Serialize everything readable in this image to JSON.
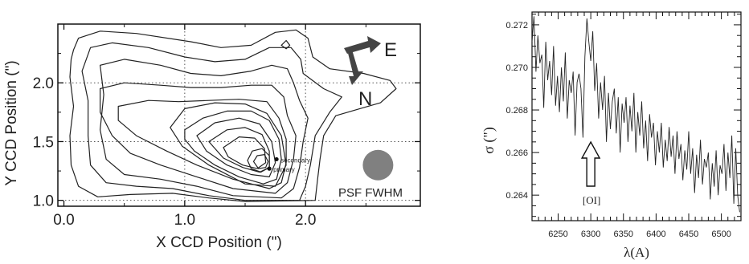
{
  "chart_data": [
    {
      "type": "contour",
      "xlabel": "X CCD Position (\")",
      "ylabel": "Y CCD Position (\")",
      "xlim": [
        -0.05,
        2.95
      ],
      "ylim": [
        0.95,
        2.5
      ],
      "xticks": [
        0.0,
        1.0,
        2.0
      ],
      "xtick_labels": [
        "0.0",
        "1.0",
        "2.0"
      ],
      "yticks": [
        1.0,
        1.5,
        2.0
      ],
      "ytick_labels": [
        "1.0",
        "1.5",
        "2.0"
      ],
      "grid": "dotted at ticks",
      "compass": {
        "east_label": "E",
        "north_label": "N"
      },
      "points": [
        {
          "label": "secondary",
          "x": 1.76,
          "y": 1.35
        },
        {
          "label": "primary",
          "x": 1.7,
          "y": 1.27
        }
      ],
      "psf_label": "PSF FWHM",
      "psf_center": {
        "x": 2.6,
        "y": 1.3
      },
      "contours": [
        [
          [
            0.08,
            2.28
          ],
          [
            0.12,
            2.38
          ],
          [
            0.3,
            2.44
          ],
          [
            0.6,
            2.42
          ],
          [
            1.05,
            2.35
          ],
          [
            1.3,
            2.3
          ],
          [
            1.55,
            2.32
          ],
          [
            1.75,
            2.43
          ],
          [
            1.92,
            2.45
          ],
          [
            2.02,
            2.38
          ],
          [
            2.06,
            2.22
          ],
          [
            2.2,
            2.12
          ],
          [
            2.48,
            2.08
          ],
          [
            2.7,
            2.02
          ],
          [
            2.75,
            1.95
          ],
          [
            2.62,
            1.83
          ],
          [
            2.45,
            1.78
          ],
          [
            2.25,
            1.72
          ],
          [
            2.15,
            1.55
          ],
          [
            2.12,
            1.35
          ],
          [
            2.1,
            1.18
          ],
          [
            2.08,
            1.0
          ],
          [
            1.5,
            0.99
          ],
          [
            1.2,
            1.02
          ],
          [
            0.9,
            1.06
          ],
          [
            0.55,
            1.05
          ],
          [
            0.28,
            1.03
          ],
          [
            0.12,
            1.12
          ],
          [
            0.06,
            1.3
          ],
          [
            0.05,
            1.55
          ],
          [
            0.08,
            1.8
          ],
          [
            0.05,
            2.05
          ],
          [
            0.06,
            2.2
          ],
          [
            0.08,
            2.28
          ]
        ],
        [
          [
            0.22,
            2.3
          ],
          [
            0.4,
            2.34
          ],
          [
            0.7,
            2.3
          ],
          [
            1.0,
            2.22
          ],
          [
            1.25,
            2.18
          ],
          [
            1.5,
            2.2
          ],
          [
            1.7,
            2.3
          ],
          [
            1.88,
            2.3
          ],
          [
            1.96,
            2.2
          ],
          [
            1.98,
            2.08
          ],
          [
            2.15,
            1.95
          ],
          [
            2.3,
            1.88
          ],
          [
            2.2,
            1.75
          ],
          [
            2.08,
            1.55
          ],
          [
            2.04,
            1.3
          ],
          [
            2.0,
            1.12
          ],
          [
            1.95,
            1.0
          ],
          [
            1.5,
            1.0
          ],
          [
            1.2,
            1.04
          ],
          [
            0.9,
            1.1
          ],
          [
            0.6,
            1.12
          ],
          [
            0.35,
            1.15
          ],
          [
            0.22,
            1.3
          ],
          [
            0.2,
            1.55
          ],
          [
            0.2,
            1.85
          ],
          [
            0.15,
            2.1
          ],
          [
            0.22,
            2.3
          ]
        ],
        [
          [
            0.3,
            2.15
          ],
          [
            0.5,
            2.2
          ],
          [
            0.8,
            2.15
          ],
          [
            1.05,
            2.08
          ],
          [
            1.3,
            2.06
          ],
          [
            1.55,
            2.1
          ],
          [
            1.72,
            2.15
          ],
          [
            1.85,
            2.12
          ],
          [
            1.9,
            2.0
          ],
          [
            1.95,
            1.85
          ],
          [
            2.02,
            1.7
          ],
          [
            1.98,
            1.5
          ],
          [
            1.95,
            1.28
          ],
          [
            1.9,
            1.1
          ],
          [
            1.8,
            1.02
          ],
          [
            1.4,
            1.04
          ],
          [
            1.1,
            1.12
          ],
          [
            0.8,
            1.18
          ],
          [
            0.5,
            1.22
          ],
          [
            0.35,
            1.35
          ],
          [
            0.3,
            1.6
          ],
          [
            0.33,
            1.9
          ],
          [
            0.3,
            2.15
          ]
        ],
        [
          [
            0.3,
            1.95
          ],
          [
            0.5,
            2.0
          ],
          [
            0.8,
            1.98
          ],
          [
            1.05,
            1.96
          ],
          [
            1.3,
            1.96
          ],
          [
            1.55,
            1.98
          ],
          [
            1.72,
            1.98
          ],
          [
            1.82,
            1.88
          ],
          [
            1.85,
            1.72
          ],
          [
            1.92,
            1.55
          ],
          [
            1.9,
            1.35
          ],
          [
            1.85,
            1.15
          ],
          [
            1.75,
            1.06
          ],
          [
            1.4,
            1.1
          ],
          [
            1.1,
            1.2
          ],
          [
            0.8,
            1.3
          ],
          [
            0.55,
            1.4
          ],
          [
            0.4,
            1.55
          ],
          [
            0.3,
            1.75
          ],
          [
            0.3,
            1.95
          ]
        ],
        [
          [
            0.45,
            1.8
          ],
          [
            0.7,
            1.85
          ],
          [
            0.95,
            1.84
          ],
          [
            1.2,
            1.85
          ],
          [
            1.45,
            1.86
          ],
          [
            1.68,
            1.84
          ],
          [
            1.78,
            1.7
          ],
          [
            1.84,
            1.52
          ],
          [
            1.84,
            1.32
          ],
          [
            1.8,
            1.15
          ],
          [
            1.7,
            1.1
          ],
          [
            1.4,
            1.18
          ],
          [
            1.1,
            1.3
          ],
          [
            0.85,
            1.42
          ],
          [
            0.6,
            1.55
          ],
          [
            0.45,
            1.68
          ],
          [
            0.45,
            1.8
          ]
        ],
        [
          [
            1.0,
            1.6
          ],
          [
            1.15,
            1.7
          ],
          [
            1.35,
            1.76
          ],
          [
            1.55,
            1.76
          ],
          [
            1.7,
            1.68
          ],
          [
            1.78,
            1.52
          ],
          [
            1.8,
            1.35
          ],
          [
            1.76,
            1.18
          ],
          [
            1.65,
            1.14
          ],
          [
            1.45,
            1.2
          ],
          [
            1.25,
            1.3
          ],
          [
            1.08,
            1.42
          ],
          [
            1.0,
            1.52
          ],
          [
            1.0,
            1.6
          ]
        ],
        [
          [
            0.88,
            1.62
          ],
          [
            1.0,
            1.78
          ],
          [
            1.25,
            1.83
          ],
          [
            1.5,
            1.82
          ],
          [
            1.68,
            1.74
          ],
          [
            1.8,
            1.55
          ],
          [
            1.84,
            1.3
          ],
          [
            1.75,
            1.12
          ],
          [
            1.5,
            1.14
          ],
          [
            1.2,
            1.3
          ],
          [
            0.98,
            1.46
          ],
          [
            0.88,
            1.62
          ]
        ],
        [
          [
            1.1,
            1.55
          ],
          [
            1.25,
            1.66
          ],
          [
            1.45,
            1.7
          ],
          [
            1.62,
            1.65
          ],
          [
            1.72,
            1.5
          ],
          [
            1.75,
            1.32
          ],
          [
            1.7,
            1.2
          ],
          [
            1.55,
            1.22
          ],
          [
            1.35,
            1.3
          ],
          [
            1.18,
            1.42
          ],
          [
            1.1,
            1.55
          ]
        ],
        [
          [
            1.2,
            1.5
          ],
          [
            1.35,
            1.6
          ],
          [
            1.5,
            1.62
          ],
          [
            1.64,
            1.56
          ],
          [
            1.7,
            1.42
          ],
          [
            1.7,
            1.28
          ],
          [
            1.62,
            1.24
          ],
          [
            1.48,
            1.28
          ],
          [
            1.32,
            1.36
          ],
          [
            1.2,
            1.5
          ]
        ],
        [
          [
            1.32,
            1.45
          ],
          [
            1.45,
            1.54
          ],
          [
            1.58,
            1.53
          ],
          [
            1.66,
            1.44
          ],
          [
            1.67,
            1.32
          ],
          [
            1.6,
            1.27
          ],
          [
            1.48,
            1.3
          ],
          [
            1.36,
            1.37
          ],
          [
            1.32,
            1.45
          ]
        ],
        [
          [
            1.52,
            1.34
          ],
          [
            1.56,
            1.42
          ],
          [
            1.64,
            1.44
          ],
          [
            1.7,
            1.38
          ],
          [
            1.7,
            1.28
          ],
          [
            1.63,
            1.24
          ],
          [
            1.55,
            1.27
          ],
          [
            1.52,
            1.34
          ]
        ],
        [
          [
            1.57,
            1.33
          ],
          [
            1.6,
            1.38
          ],
          [
            1.66,
            1.39
          ],
          [
            1.69,
            1.33
          ],
          [
            1.67,
            1.28
          ],
          [
            1.61,
            1.27
          ],
          [
            1.57,
            1.33
          ]
        ],
        [
          [
            1.8,
            2.32
          ],
          [
            1.84,
            2.36
          ],
          [
            1.87,
            2.32
          ],
          [
            1.84,
            2.29
          ],
          [
            1.8,
            2.32
          ]
        ]
      ]
    },
    {
      "type": "line",
      "xlabel": "λ(A)",
      "ylabel": "σ (\")",
      "xlim": [
        6210,
        6530
      ],
      "ylim": [
        0.2628,
        0.2726
      ],
      "xticks": [
        6250,
        6300,
        6350,
        6400,
        6450,
        6500
      ],
      "xtick_labels": [
        "6250",
        "6300",
        "6350",
        "6400",
        "6450",
        "6500"
      ],
      "yticks": [
        0.264,
        0.266,
        0.268,
        0.27,
        0.272
      ],
      "ytick_labels": [
        "0.264",
        "0.266",
        "0.268",
        "0.270",
        "0.272"
      ],
      "annotation": {
        "label": "[OI]",
        "x": 6300
      },
      "series": [
        {
          "x": [
            6210,
            6213,
            6216,
            6219,
            6222,
            6225,
            6228,
            6231,
            6234,
            6237,
            6240,
            6243,
            6246,
            6249,
            6252,
            6255,
            6258,
            6261,
            6264,
            6267,
            6270,
            6273,
            6276,
            6279,
            6282,
            6285,
            6288,
            6291,
            6294,
            6297,
            6300,
            6303,
            6306,
            6309,
            6312,
            6315,
            6318,
            6321,
            6324,
            6327,
            6330,
            6333,
            6336,
            6339,
            6342,
            6345,
            6348,
            6351,
            6354,
            6357,
            6360,
            6363,
            6366,
            6369,
            6372,
            6375,
            6378,
            6381,
            6384,
            6387,
            6390,
            6393,
            6396,
            6399,
            6402,
            6405,
            6408,
            6411,
            6414,
            6417,
            6420,
            6423,
            6426,
            6429,
            6432,
            6435,
            6438,
            6441,
            6444,
            6447,
            6450,
            6453,
            6456,
            6459,
            6462,
            6465,
            6468,
            6471,
            6474,
            6477,
            6480,
            6483,
            6486,
            6489,
            6492,
            6495,
            6498,
            6501,
            6504,
            6507,
            6510,
            6513,
            6516,
            6519,
            6522,
            6525,
            6528
          ],
          "values": [
            0.2712,
            0.2724,
            0.2698,
            0.2715,
            0.2702,
            0.2706,
            0.2681,
            0.2712,
            0.2694,
            0.2703,
            0.2687,
            0.271,
            0.2682,
            0.2696,
            0.2679,
            0.27,
            0.2684,
            0.2707,
            0.2676,
            0.2694,
            0.2688,
            0.2698,
            0.2668,
            0.2693,
            0.2697,
            0.269,
            0.2667,
            0.2705,
            0.2723,
            0.2712,
            0.2703,
            0.2717,
            0.2689,
            0.2702,
            0.2676,
            0.2693,
            0.268,
            0.2696,
            0.2665,
            0.2688,
            0.2671,
            0.2684,
            0.269,
            0.2669,
            0.2686,
            0.266,
            0.2683,
            0.2674,
            0.2686,
            0.2665,
            0.2682,
            0.267,
            0.2688,
            0.266,
            0.2679,
            0.2668,
            0.2684,
            0.2662,
            0.2675,
            0.2656,
            0.2678,
            0.2667,
            0.2674,
            0.2654,
            0.267,
            0.266,
            0.2674,
            0.2653,
            0.2666,
            0.2656,
            0.2672,
            0.2658,
            0.2668,
            0.265,
            0.267,
            0.2657,
            0.2664,
            0.2647,
            0.2661,
            0.2652,
            0.267,
            0.265,
            0.2662,
            0.2641,
            0.2659,
            0.2648,
            0.2666,
            0.2645,
            0.2657,
            0.2653,
            0.266,
            0.2638,
            0.2655,
            0.2644,
            0.2661,
            0.264,
            0.2654,
            0.265,
            0.2664,
            0.2642,
            0.266,
            0.2648,
            0.2668,
            0.2636,
            0.2662,
            0.264,
            0.2632
          ]
        }
      ]
    }
  ]
}
